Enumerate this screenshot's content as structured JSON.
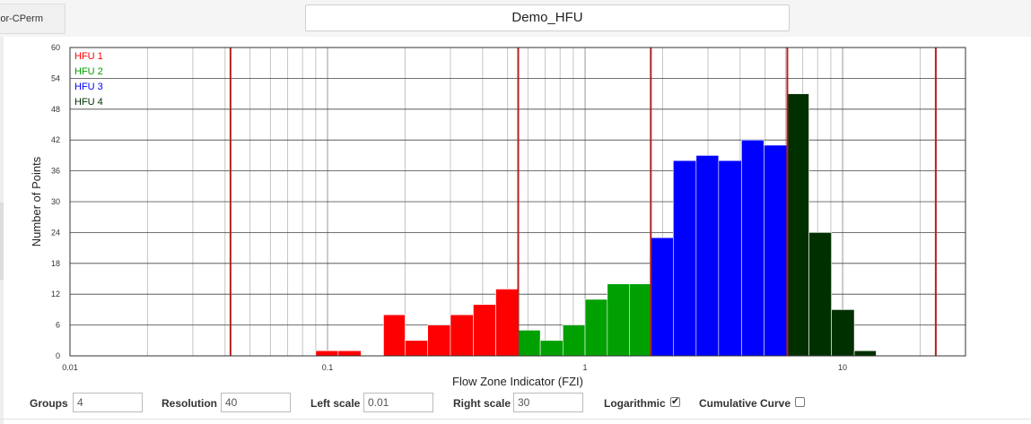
{
  "window": {
    "left_tab_label": "Por-CPerm",
    "chart_title": "Demo_HFU"
  },
  "chart_data": {
    "type": "bar",
    "title": "Demo_HFU",
    "xlabel": "Flow Zone Indicator (FZI)",
    "ylabel": "Number of Points",
    "xscale": "log",
    "xlim": [
      0.01,
      30
    ],
    "ylim": [
      0,
      60
    ],
    "x_tick_labels": [
      "0.01",
      "0.1",
      "1",
      "10"
    ],
    "x_tick_values": [
      0.01,
      0.1,
      1,
      10
    ],
    "y_tick_labels": [
      "0",
      "6",
      "12",
      "18",
      "24",
      "30",
      "36",
      "42",
      "48",
      "54",
      "60"
    ],
    "y_tick_values": [
      0,
      6,
      12,
      18,
      24,
      30,
      36,
      42,
      48,
      54,
      60
    ],
    "grid": true,
    "legend_position": "top-left",
    "boundaries": [
      0.042,
      0.55,
      1.8,
      6.1,
      23
    ],
    "boundary_color": "#b22222",
    "series": [
      {
        "name": "HFU 1",
        "color": "#ff0000",
        "bins": [
          {
            "x0": 0.09,
            "x1": 0.11,
            "count": 1
          },
          {
            "x0": 0.11,
            "x1": 0.135,
            "count": 1
          },
          {
            "x0": 0.165,
            "x1": 0.2,
            "count": 8
          },
          {
            "x0": 0.2,
            "x1": 0.245,
            "count": 3
          },
          {
            "x0": 0.245,
            "x1": 0.3,
            "count": 6
          },
          {
            "x0": 0.3,
            "x1": 0.368,
            "count": 8
          },
          {
            "x0": 0.368,
            "x1": 0.45,
            "count": 10
          },
          {
            "x0": 0.45,
            "x1": 0.55,
            "count": 13
          }
        ]
      },
      {
        "name": "HFU 2",
        "color": "#00a000",
        "bins": [
          {
            "x0": 0.55,
            "x1": 0.67,
            "count": 5
          },
          {
            "x0": 0.67,
            "x1": 0.82,
            "count": 3
          },
          {
            "x0": 0.82,
            "x1": 1.0,
            "count": 6
          },
          {
            "x0": 1.0,
            "x1": 1.22,
            "count": 11
          },
          {
            "x0": 1.22,
            "x1": 1.49,
            "count": 14
          },
          {
            "x0": 1.49,
            "x1": 1.8,
            "count": 14
          }
        ]
      },
      {
        "name": "HFU 3",
        "color": "#0000ff",
        "bins": [
          {
            "x0": 1.8,
            "x1": 2.2,
            "count": 23
          },
          {
            "x0": 2.2,
            "x1": 2.7,
            "count": 38
          },
          {
            "x0": 2.7,
            "x1": 3.3,
            "count": 39
          },
          {
            "x0": 3.3,
            "x1": 4.05,
            "count": 38
          },
          {
            "x0": 4.05,
            "x1": 4.95,
            "count": 42
          },
          {
            "x0": 4.95,
            "x1": 6.1,
            "count": 41
          }
        ]
      },
      {
        "name": "HFU 4",
        "color": "#003000",
        "bins": [
          {
            "x0": 6.1,
            "x1": 7.4,
            "count": 51
          },
          {
            "x0": 7.4,
            "x1": 9.05,
            "count": 24
          },
          {
            "x0": 9.05,
            "x1": 11.1,
            "count": 9
          },
          {
            "x0": 11.1,
            "x1": 13.5,
            "count": 1
          }
        ]
      }
    ]
  },
  "controls": {
    "groups_label": "Groups",
    "groups_value": "4",
    "resolution_label": "Resolution",
    "resolution_value": "40",
    "left_scale_label": "Left scale",
    "left_scale_value": "0.01",
    "right_scale_label": "Right scale",
    "right_scale_value": "30",
    "logarithmic_label": "Logarithmic",
    "logarithmic_checked": true,
    "cumulative_label": "Cumulative Curve",
    "cumulative_checked": false
  }
}
